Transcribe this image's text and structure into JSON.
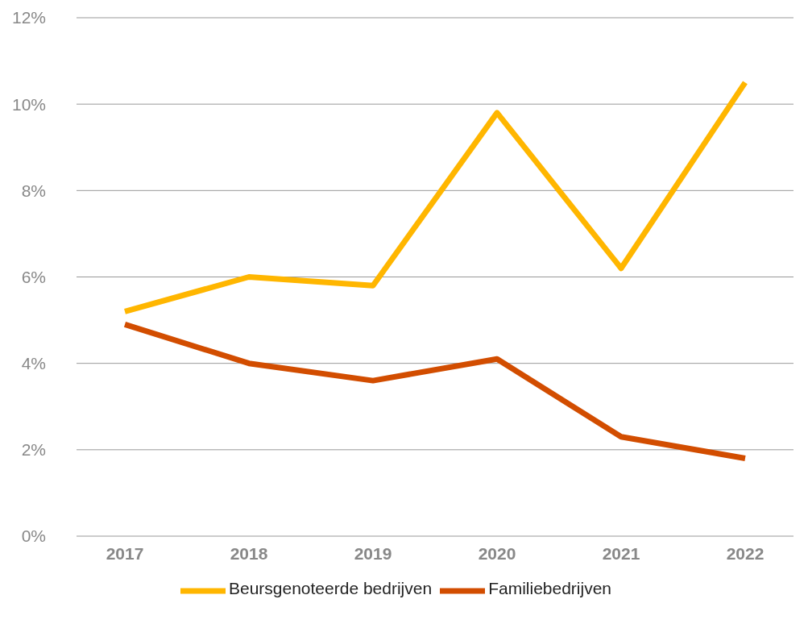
{
  "chart_data": {
    "type": "line",
    "categories": [
      "2017",
      "2018",
      "2019",
      "2020",
      "2021",
      "2022"
    ],
    "series": [
      {
        "name": "Familiebedrijven",
        "color": "#d24d00",
        "values": [
          4.9,
          4.0,
          3.6,
          4.1,
          2.3,
          1.8
        ]
      },
      {
        "name": "Beursgenoteerde bedrijven",
        "color": "#ffb600",
        "values": [
          5.2,
          6.0,
          5.8,
          9.8,
          6.2,
          10.5
        ]
      }
    ],
    "ylim": [
      0,
      12
    ],
    "yticks": [
      {
        "value": 0,
        "label": "0%"
      },
      {
        "value": 2,
        "label": "2%"
      },
      {
        "value": 4,
        "label": "4%"
      },
      {
        "value": 6,
        "label": "6%"
      },
      {
        "value": 8,
        "label": "8%"
      },
      {
        "value": 10,
        "label": "10%"
      },
      {
        "value": 12,
        "label": "12%"
      }
    ],
    "grid": "y",
    "legend": "bottom",
    "marker": "none",
    "line_style": "solid"
  }
}
